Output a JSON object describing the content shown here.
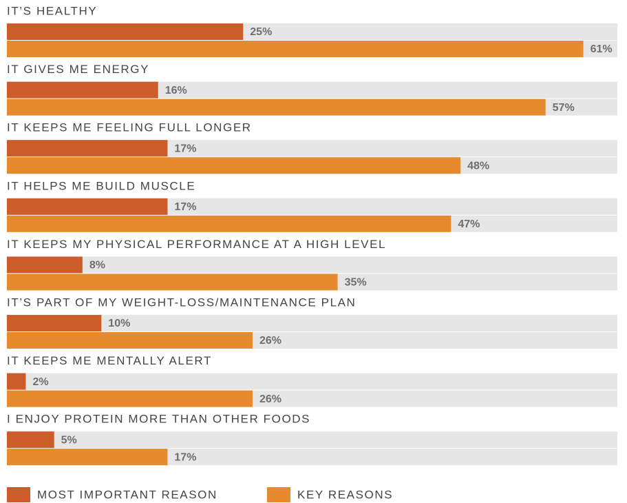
{
  "chart_data": {
    "type": "bar",
    "orientation": "horizontal",
    "categories": [
      "IT’S HEALTHY",
      "IT GIVES ME ENERGY",
      "IT KEEPS ME FEELING FULL LONGER",
      "IT HELPS ME BUILD MUSCLE",
      "IT KEEPS MY PHYSICAL PERFORMANCE AT A HIGH LEVEL",
      "IT’S PART OF MY WEIGHT-LOSS/MAINTENANCE PLAN",
      "IT KEEPS ME MENTALLY ALERT",
      "I ENJOY PROTEIN MORE THAN OTHER FOODS"
    ],
    "series": [
      {
        "name": "MOST IMPORTANT REASON",
        "color": "#cc5c2a",
        "values": [
          25,
          16,
          17,
          17,
          8,
          10,
          2,
          5
        ],
        "value_labels": [
          "25%",
          "16%",
          "17%",
          "17%",
          "8%",
          "10%",
          "2%",
          "5%"
        ]
      },
      {
        "name": "KEY REASONS",
        "color": "#e58a2e",
        "values": [
          61,
          57,
          48,
          47,
          35,
          26,
          26,
          17
        ],
        "value_labels": [
          "61%",
          "57%",
          "48%",
          "47%",
          "35%",
          "26%",
          "26%",
          "17%"
        ]
      }
    ],
    "xlim": [
      0,
      64.6
    ]
  }
}
